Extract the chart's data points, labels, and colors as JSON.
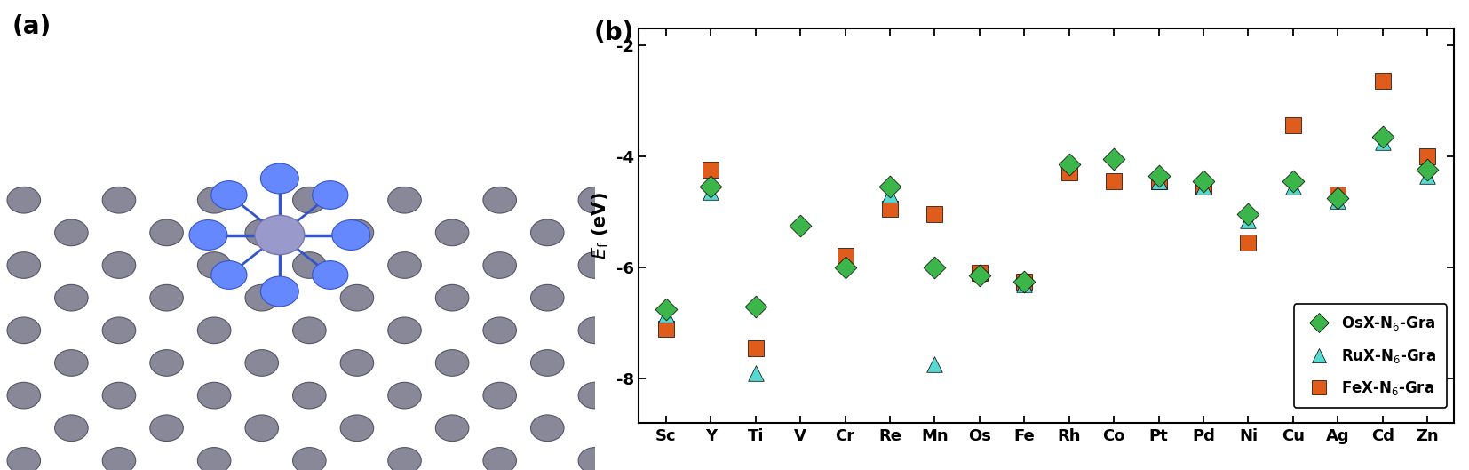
{
  "categories": [
    "Sc",
    "Y",
    "Ti",
    "V",
    "Cr",
    "Re",
    "Mn",
    "Os",
    "Fe",
    "Rh",
    "Co",
    "Pt",
    "Pd",
    "Ni",
    "Cu",
    "Ag",
    "Cd",
    "Zn"
  ],
  "Os_data": [
    -6.75,
    -4.55,
    -6.7,
    -5.25,
    -6.0,
    -4.55,
    -6.0,
    -6.15,
    -6.25,
    -4.15,
    -4.05,
    -4.35,
    -4.45,
    -5.05,
    -4.45,
    -4.75,
    -3.65,
    -4.25
  ],
  "Ru_data": [
    -6.85,
    -4.65,
    -7.9,
    null,
    null,
    -4.7,
    -7.75,
    null,
    -6.3,
    null,
    null,
    -4.45,
    -4.55,
    -5.15,
    -4.55,
    -4.8,
    -3.75,
    -4.35
  ],
  "Fe_data": [
    -7.1,
    -4.25,
    -7.45,
    null,
    -5.8,
    -4.95,
    -5.05,
    -6.1,
    -6.25,
    -4.3,
    -4.45,
    -4.45,
    -4.55,
    -5.55,
    -3.45,
    -4.7,
    -2.65,
    -4.0
  ],
  "Os_color": "#3cb54a",
  "Ru_color": "#56d9d0",
  "Fe_color": "#e05c1a",
  "ylabel": "$E_\\mathrm{f}$ (eV)",
  "ylim": [
    -8.8,
    -1.7
  ],
  "yticks": [
    -2,
    -4,
    -6,
    -8
  ],
  "label_a": "(a)",
  "label_b": "(b)",
  "legend_Os": "OsX-N$_6$-Gra",
  "legend_Ru": "RuX-N$_6$-Gra",
  "legend_Fe": "FeX-N$_6$-Gra",
  "background_color": "#ffffff",
  "left_bg_color": "#c8cdd4",
  "fig_width": 16.54,
  "fig_height": 5.29
}
